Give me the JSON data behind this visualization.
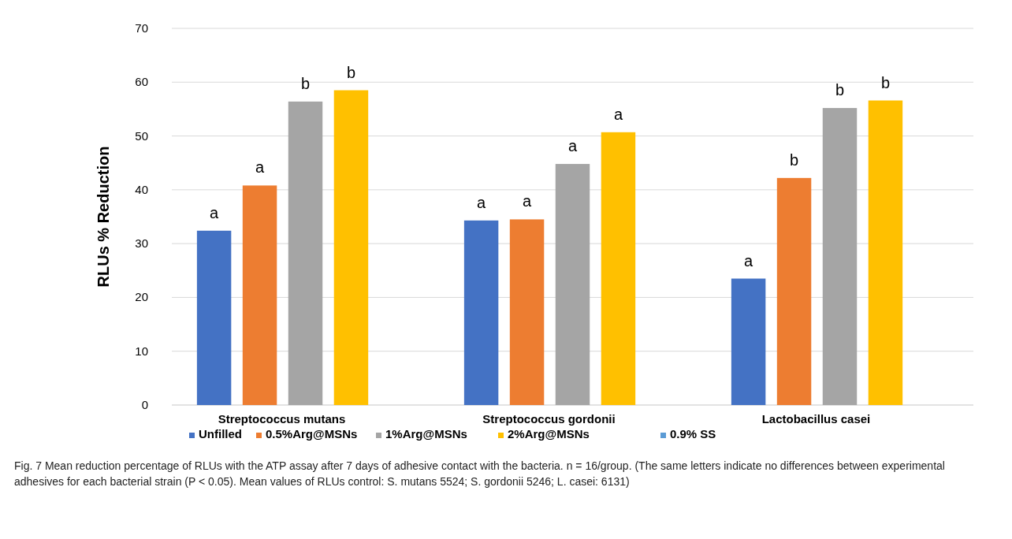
{
  "chart_data": {
    "type": "bar",
    "ylabel": "RLUs % Reduction",
    "categories": [
      "Streptococcus mutans",
      "Streptococcus gordonii",
      "Lactobacillus casei"
    ],
    "series": [
      {
        "name": "Unfilled",
        "color": "#4472c4",
        "values": [
          32.4,
          34.3,
          23.5
        ],
        "value_labels": [
          "a",
          "a",
          "a"
        ]
      },
      {
        "name": "0.5%Arg@MSNs",
        "color": "#ed7d31",
        "values": [
          40.8,
          34.5,
          42.2
        ],
        "value_labels": [
          "a",
          "a",
          "b"
        ]
      },
      {
        "name": "1%Arg@MSNs",
        "color": "#a5a5a5",
        "values": [
          56.4,
          44.8,
          55.2
        ],
        "value_labels": [
          "b",
          "a",
          "b"
        ]
      },
      {
        "name": "2%Arg@MSNs",
        "color": "#ffc000",
        "values": [
          58.5,
          50.7,
          56.6
        ],
        "value_labels": [
          "b",
          "a",
          "b"
        ]
      },
      {
        "name": "0.9% SS",
        "color": "#5b9bd5",
        "values": [
          null,
          null,
          null
        ]
      }
    ],
    "ylim": [
      0,
      70
    ],
    "yticks": [
      0,
      10,
      20,
      30,
      40,
      50,
      60,
      70
    ],
    "grid": "y",
    "legend": "bottom",
    "annotations": [
      "Fig. 7  Mean reduction percentage of RLUs with the ATP assay after 7 days of adhesive contact with the bacteria. n = 16/group. (The same letters indicate no differences between experimental adhesives for each bacterial strain (P < 0.05). Mean values of RLUs control: S. mutans 5524; S. gordonii 5246; L. casei: 6131)"
    ]
  }
}
